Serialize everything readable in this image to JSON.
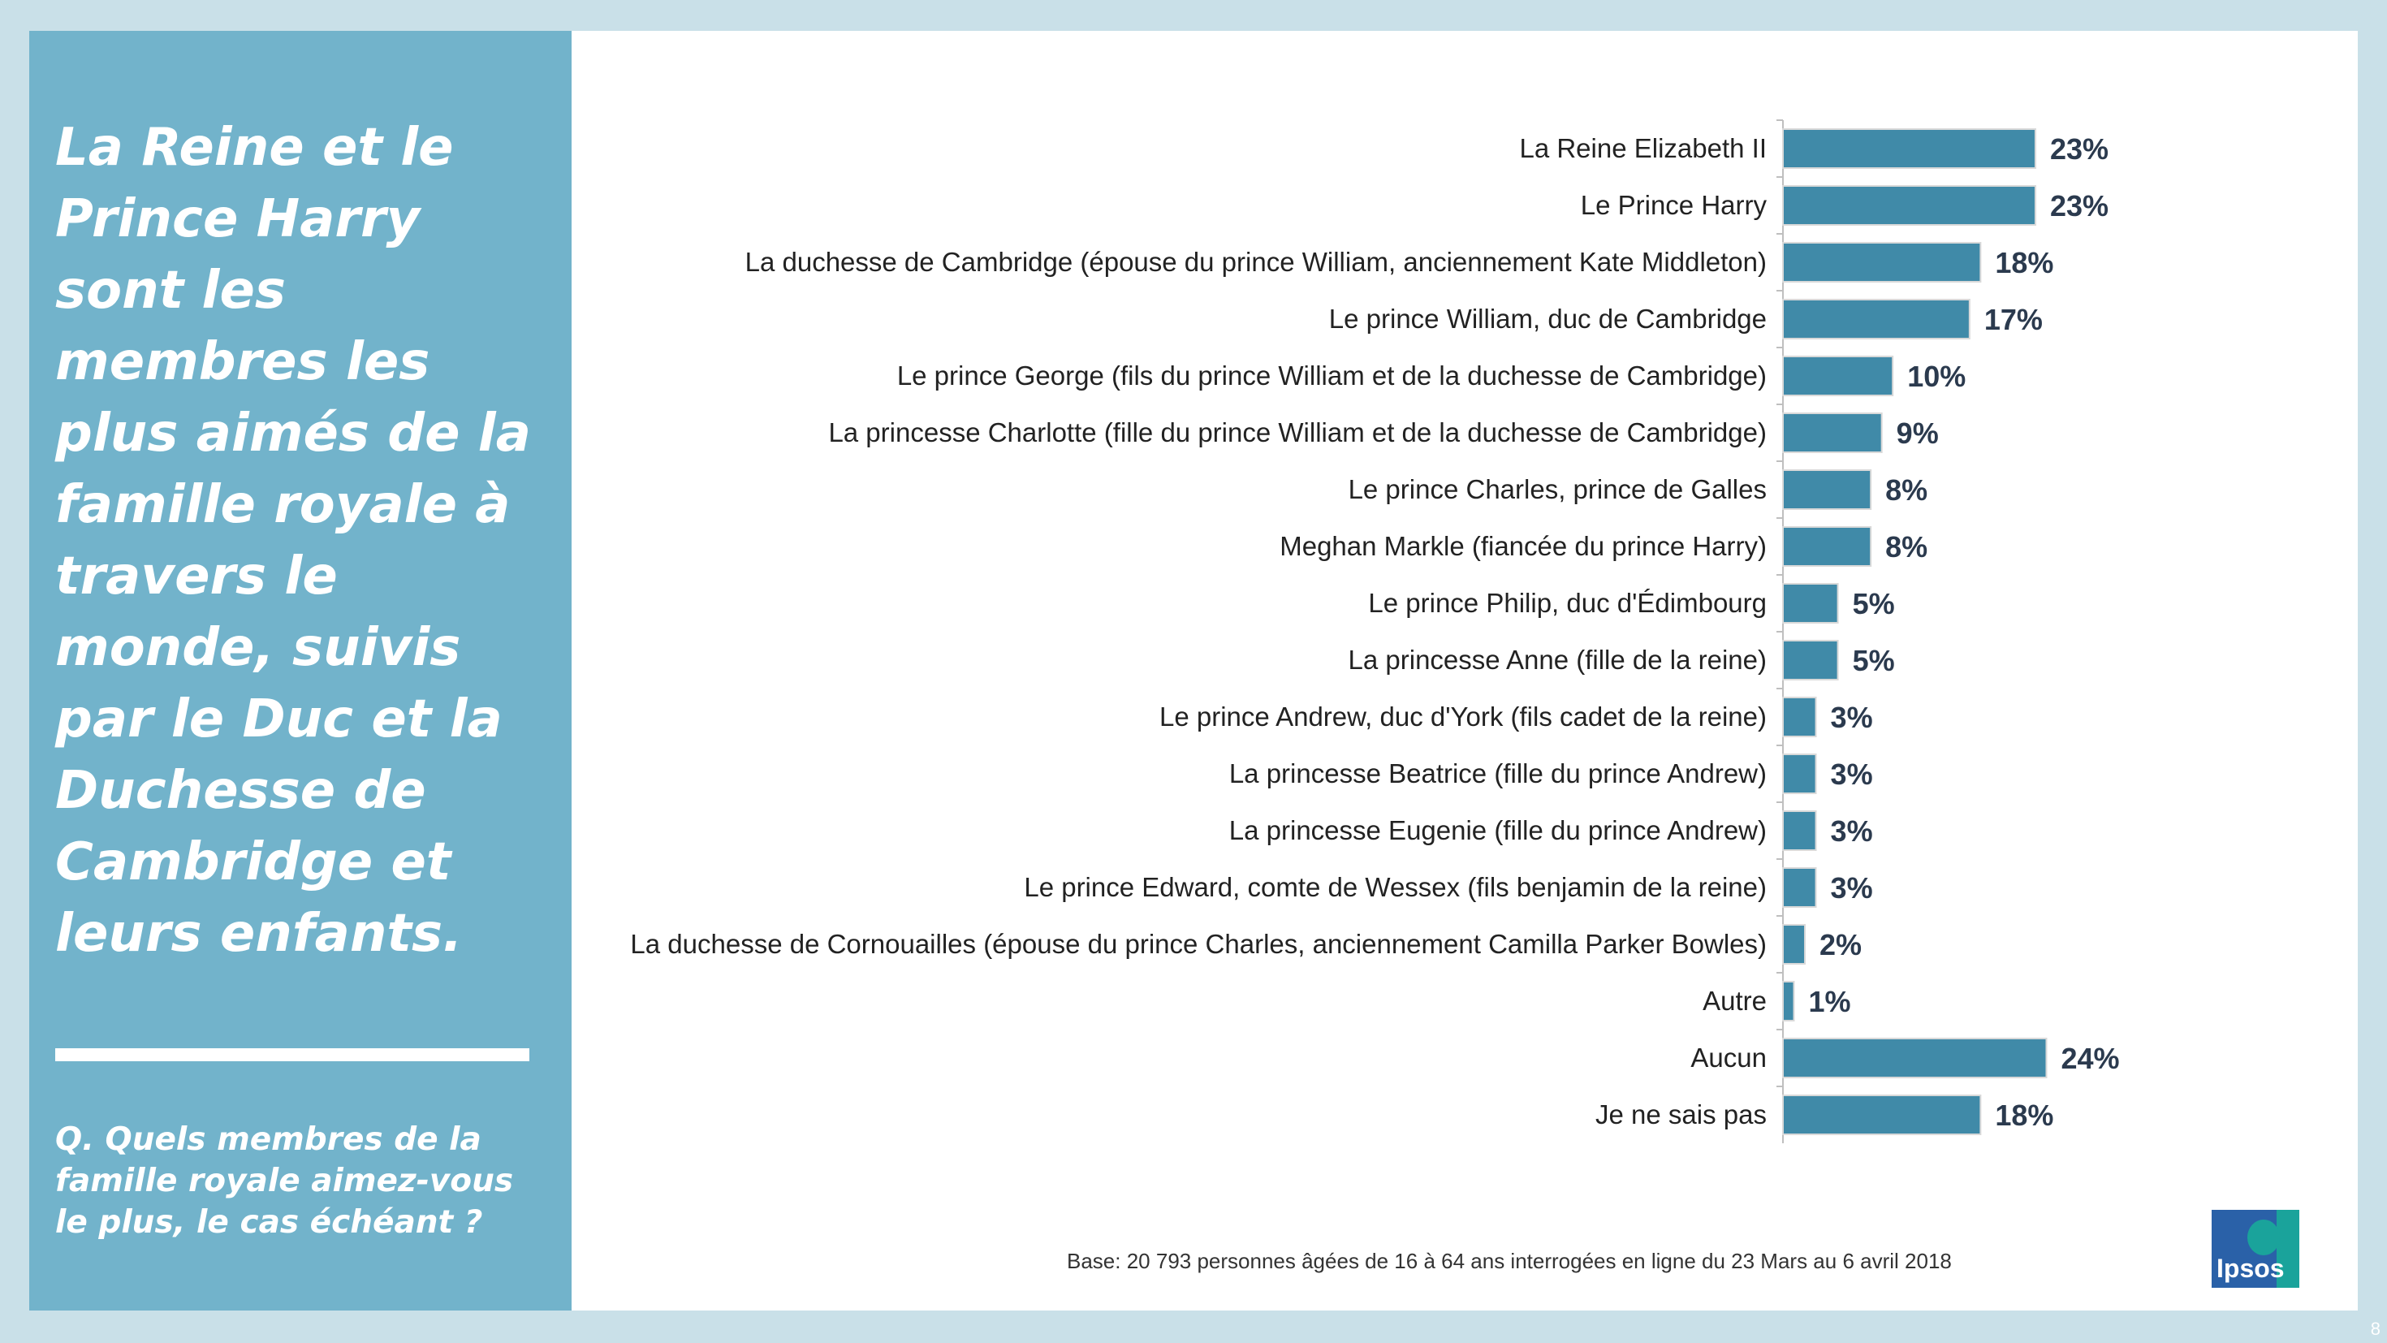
{
  "headline": "La Reine et le Prince Harry sont les membres les plus aimés de la famille royale à travers le monde, suivis par le Duc et la Duchesse de Cambridge et leurs enfants.",
  "question": "Q. Quels membres de la famille royale aimez-vous le plus, le cas échéant ?",
  "base_note": "Base: 20 793 personnes âgées de 16 à 64 ans interrogées en ligne du 23 Mars au 6 avril 2018",
  "logo_text": "Ipsos",
  "page_number": "8",
  "colors": {
    "bar": "#408aa8",
    "panel": "#72b3cb",
    "background": "#c9e0e8"
  },
  "chart_data": {
    "type": "bar",
    "orientation": "horizontal",
    "categories": [
      "La Reine Elizabeth II",
      "Le Prince Harry",
      "La duchesse de Cambridge (épouse du prince William, anciennement Kate Middleton)",
      "Le prince William, duc de Cambridge",
      "Le prince George (fils du prince William et de la duchesse de Cambridge)",
      "La princesse Charlotte (fille du prince William et de la duchesse de Cambridge)",
      "Le prince Charles, prince de Galles",
      "Meghan Markle (fiancée du prince Harry)",
      "Le prince Philip, duc d'Édimbourg",
      "La princesse Anne (fille de la reine)",
      "Le prince Andrew, duc d'York (fils cadet de la reine)",
      "La princesse Beatrice (fille du prince Andrew)",
      "La princesse Eugenie (fille du prince Andrew)",
      "Le prince Edward, comte de Wessex (fils benjamin de la reine)",
      "La duchesse de Cornouailles (épouse du prince Charles, anciennement Camilla Parker Bowles)",
      "Autre",
      "Aucun",
      "Je ne sais pas"
    ],
    "values": [
      23,
      23,
      18,
      17,
      10,
      9,
      8,
      8,
      5,
      5,
      3,
      3,
      3,
      3,
      2,
      1,
      24,
      18
    ],
    "value_labels": [
      "23%",
      "23%",
      "18%",
      "17%",
      "10%",
      "9%",
      "8%",
      "8%",
      "5%",
      "5%",
      "3%",
      "3%",
      "3%",
      "3%",
      "2%",
      "1%",
      "24%",
      "18%"
    ],
    "xlim": [
      0,
      25
    ],
    "grid": false,
    "legend": "none"
  }
}
